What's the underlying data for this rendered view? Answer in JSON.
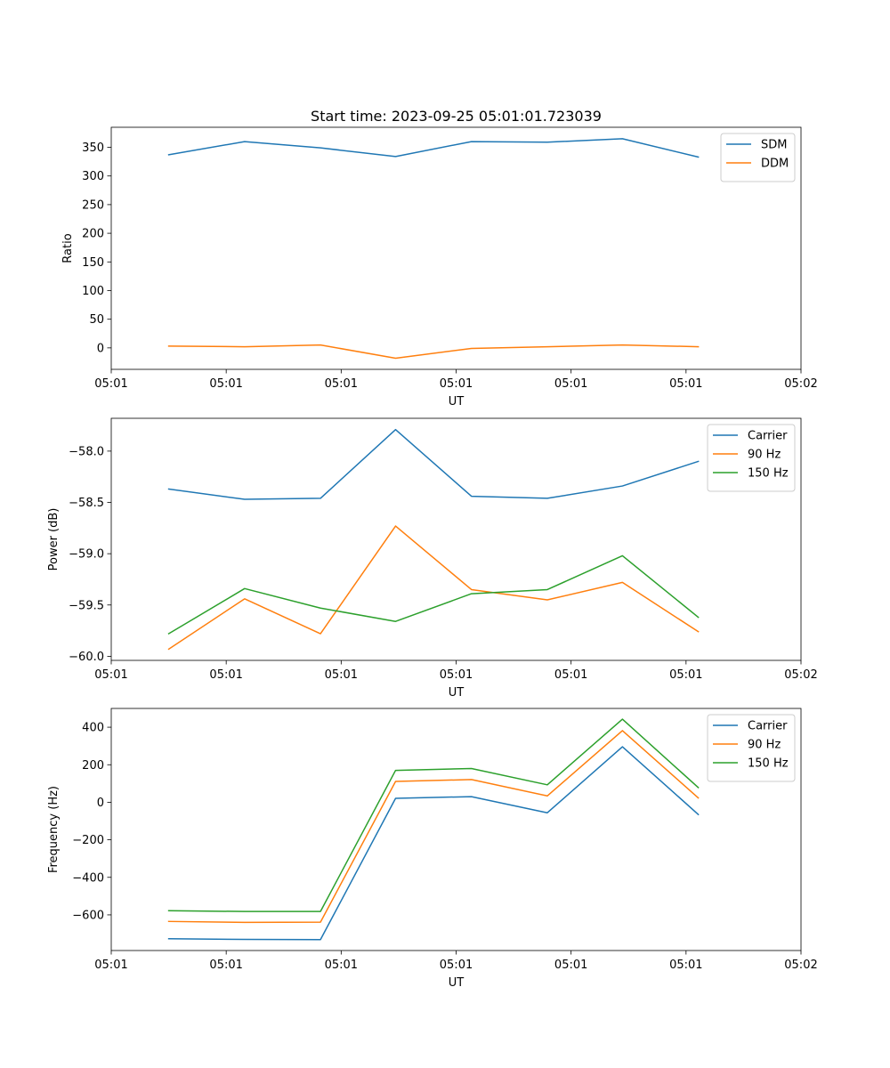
{
  "chart_data": [
    {
      "type": "line",
      "title": "Start time: 2023-09-25 05:01:01.723039",
      "xlabel": "UT",
      "ylabel": "Ratio",
      "xlim": [
        0,
        9
      ],
      "ylim": [
        -37.5,
        385
      ],
      "x_tick_values": [
        0,
        1.5,
        3,
        4.5,
        6,
        7.5,
        9
      ],
      "x_tick_labels": [
        "05:01",
        "05:01",
        "05:01",
        "05:01",
        "05:01",
        "05:01",
        "05:02"
      ],
      "y_ticks": [
        0,
        50,
        100,
        150,
        200,
        250,
        300,
        350
      ],
      "y_tick_labels": [
        "0",
        "50",
        "100",
        "150",
        "200",
        "250",
        "300",
        "350"
      ],
      "legend_position": "top-right",
      "x": [
        0.75,
        1.74,
        2.73,
        3.71,
        4.7,
        5.69,
        6.67,
        7.66
      ],
      "series": [
        {
          "name": "SDM",
          "color": "#1f77b4",
          "values": [
            337,
            360,
            349,
            334,
            360,
            359,
            365,
            333
          ]
        },
        {
          "name": "DDM",
          "color": "#ff7f0e",
          "values": [
            3,
            2,
            5,
            -18,
            -1,
            2,
            5,
            2
          ]
        }
      ]
    },
    {
      "type": "line",
      "title": "",
      "xlabel": "UT",
      "ylabel": "Power (dB)",
      "xlim": [
        0,
        9
      ],
      "ylim": [
        -60.04,
        -57.68
      ],
      "x_tick_values": [
        0,
        1.5,
        3,
        4.5,
        6,
        7.5,
        9
      ],
      "x_tick_labels": [
        "05:01",
        "05:01",
        "05:01",
        "05:01",
        "05:01",
        "05:01",
        "05:02"
      ],
      "y_ticks": [
        -60.0,
        -59.5,
        -59.0,
        -58.5,
        -58.0
      ],
      "y_tick_labels": [
        "−60.0",
        "−59.5",
        "−59.0",
        "−58.5",
        "−58.0"
      ],
      "legend_position": "top-right",
      "x": [
        0.75,
        1.74,
        2.73,
        3.71,
        4.7,
        5.69,
        6.67,
        7.66
      ],
      "series": [
        {
          "name": "Carrier",
          "color": "#1f77b4",
          "values": [
            -58.37,
            -58.47,
            -58.46,
            -57.79,
            -58.44,
            -58.46,
            -58.34,
            -58.1
          ]
        },
        {
          "name": "90 Hz",
          "color": "#ff7f0e",
          "values": [
            -59.93,
            -59.44,
            -59.78,
            -58.73,
            -59.35,
            -59.45,
            -59.28,
            -59.76
          ]
        },
        {
          "name": "150 Hz",
          "color": "#2ca02c",
          "values": [
            -59.78,
            -59.34,
            -59.53,
            -59.66,
            -59.39,
            -59.35,
            -59.02,
            -59.62
          ]
        }
      ]
    },
    {
      "type": "line",
      "title": "",
      "xlabel": "UT",
      "ylabel": "Frequency (Hz)",
      "xlim": [
        0,
        9
      ],
      "ylim": [
        -790,
        500
      ],
      "x_tick_values": [
        0,
        1.5,
        3,
        4.5,
        6,
        7.5,
        9
      ],
      "x_tick_labels": [
        "05:01",
        "05:01",
        "05:01",
        "05:01",
        "05:01",
        "05:01",
        "05:02"
      ],
      "y_ticks": [
        -600,
        -400,
        -200,
        0,
        200,
        400
      ],
      "y_tick_labels": [
        "−600",
        "−400",
        "−200",
        "0",
        "200",
        "400"
      ],
      "legend_position": "top-right",
      "x": [
        0.75,
        1.74,
        2.73,
        3.71,
        4.7,
        5.69,
        6.67,
        7.66
      ],
      "series": [
        {
          "name": "Carrier",
          "color": "#1f77b4",
          "values": [
            -727,
            -731,
            -732,
            21,
            30,
            -56,
            296,
            -65
          ]
        },
        {
          "name": "90 Hz",
          "color": "#ff7f0e",
          "values": [
            -635,
            -640,
            -639,
            111,
            121,
            34,
            382,
            23
          ]
        },
        {
          "name": "150 Hz",
          "color": "#2ca02c",
          "values": [
            -578,
            -582,
            -582,
            170,
            180,
            93,
            443,
            78
          ]
        }
      ]
    }
  ]
}
